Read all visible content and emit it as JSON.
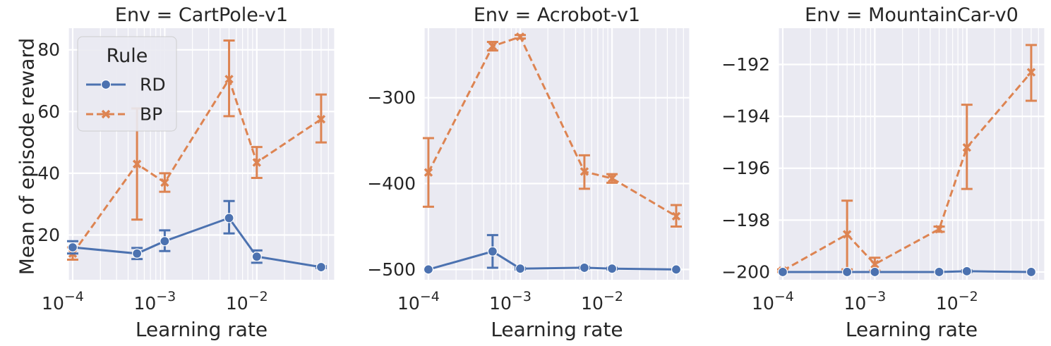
{
  "figure": {
    "ylabel": "Mean of episode reward",
    "xlabel": "Learning rate",
    "legend": {
      "title": "Rule",
      "entries": [
        "RD",
        "BP"
      ],
      "placement": "upper-left of first panel"
    },
    "colors": {
      "RD": "#4c72b0",
      "BP": "#dd8452",
      "panel_bg": "#eaeaf2",
      "grid": "#ffffff"
    }
  },
  "chart_data": [
    {
      "type": "line",
      "title": "Env = CartPole-v1",
      "xlabel": "Learning rate",
      "ylabel": "Mean of episode reward",
      "xscale": "log",
      "xlim": [
        9e-05,
        0.07
      ],
      "ylim": [
        5.5,
        87
      ],
      "x_ticks": [
        0.0001,
        0.001,
        0.01
      ],
      "x_tick_labels": [
        [
          "10",
          "−4"
        ],
        [
          "10",
          "−3"
        ],
        [
          "10",
          "−2"
        ]
      ],
      "y_ticks": [
        20,
        40,
        60,
        80
      ],
      "y_tick_labels": [
        "20",
        "40",
        "60",
        "80"
      ],
      "x": [
        0.0001,
        0.0005,
        0.001,
        0.005,
        0.01,
        0.05
      ],
      "series": [
        {
          "name": "RD",
          "marker": "circle",
          "dash": "solid",
          "values": [
            16.0,
            14.0,
            18.0,
            25.5,
            13.0,
            9.6
          ],
          "err_low": [
            14.0,
            12.2,
            14.8,
            20.5,
            11.0,
            9.3
          ],
          "err_high": [
            18.0,
            15.8,
            21.5,
            31.0,
            15.0,
            9.9
          ]
        },
        {
          "name": "BP",
          "marker": "x",
          "dash": "dashed",
          "values": [
            14.0,
            43.0,
            37.0,
            70.5,
            43.5,
            57.5
          ],
          "err_low": [
            12.0,
            25.0,
            34.0,
            58.5,
            38.5,
            50.0
          ],
          "err_high": [
            16.0,
            61.0,
            40.0,
            83.0,
            48.5,
            65.5
          ]
        }
      ]
    },
    {
      "type": "line",
      "title": "Env = Acrobot-v1",
      "xlabel": "Learning rate",
      "ylabel": "",
      "xscale": "log",
      "xlim": [
        9e-05,
        0.07
      ],
      "ylim": [
        -512,
        -219
      ],
      "x_ticks": [
        0.0001,
        0.001,
        0.01
      ],
      "x_tick_labels": [
        [
          "10",
          "−4"
        ],
        [
          "10",
          "−3"
        ],
        [
          "10",
          "−2"
        ]
      ],
      "y_ticks": [
        -300,
        -400,
        -500
      ],
      "y_tick_labels": [
        "−300",
        "−400",
        "−500"
      ],
      "x": [
        0.0001,
        0.0005,
        0.001,
        0.005,
        0.01,
        0.05
      ],
      "series": [
        {
          "name": "RD",
          "marker": "circle",
          "dash": "solid",
          "values": [
            -500,
            -479,
            -499,
            -498,
            -499,
            -500
          ],
          "err_low": [
            -500,
            -498,
            -500,
            -499,
            -500,
            -500
          ],
          "err_high": [
            -500,
            -460,
            -498,
            -497,
            -498,
            -500
          ]
        },
        {
          "name": "BP",
          "marker": "x",
          "dash": "dashed",
          "values": [
            -387,
            -240,
            -229,
            -386,
            -394,
            -438
          ],
          "err_low": [
            -427,
            -245,
            -231,
            -406,
            -399,
            -450
          ],
          "err_high": [
            -347,
            -235,
            -227,
            -367,
            -389,
            -425
          ]
        }
      ]
    },
    {
      "type": "line",
      "title": "Env = MountainCar-v0",
      "xlabel": "Learning rate",
      "ylabel": "",
      "xscale": "log",
      "xlim": [
        9e-05,
        0.07
      ],
      "ylim": [
        -200.3,
        -190.6
      ],
      "x_ticks": [
        0.0001,
        0.001,
        0.01
      ],
      "x_tick_labels": [
        [
          "10",
          "−4"
        ],
        [
          "10",
          "−3"
        ],
        [
          "10",
          "−2"
        ]
      ],
      "y_ticks": [
        -192,
        -194,
        -196,
        -198,
        -200
      ],
      "y_tick_labels": [
        "−192",
        "−194",
        "−196",
        "−198",
        "−200"
      ],
      "x": [
        0.0001,
        0.0005,
        0.001,
        0.005,
        0.01,
        0.05
      ],
      "series": [
        {
          "name": "RD",
          "marker": "circle",
          "dash": "solid",
          "values": [
            -200.0,
            -200.0,
            -200.0,
            -200.0,
            -199.97,
            -200.0
          ],
          "err_low": [
            -200.0,
            -200.0,
            -200.0,
            -200.0,
            -200.0,
            -200.0
          ],
          "err_high": [
            -200.0,
            -200.0,
            -200.0,
            -200.0,
            -199.94,
            -200.0
          ]
        },
        {
          "name": "BP",
          "marker": "x",
          "dash": "dashed",
          "values": [
            -199.95,
            -198.55,
            -199.7,
            -198.35,
            -195.2,
            -192.3
          ],
          "err_low": [
            -200.0,
            -199.9,
            -199.95,
            -198.45,
            -196.8,
            -193.4
          ],
          "err_high": [
            -199.9,
            -197.25,
            -199.45,
            -198.25,
            -193.55,
            -191.25
          ]
        }
      ]
    }
  ]
}
